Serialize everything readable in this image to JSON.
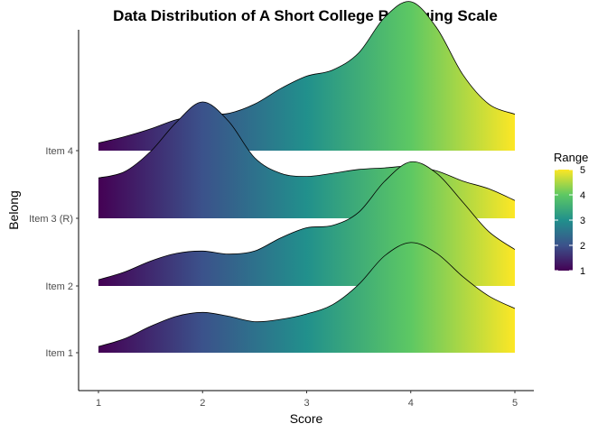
{
  "chart_data": {
    "type": "ridgeline",
    "title": "Data Distribution of A Short College Belonging Scale",
    "xlabel": "Score",
    "ylabel": "Belong",
    "xlim": [
      1,
      5
    ],
    "x_ticks": [
      "1",
      "2",
      "3",
      "4",
      "5"
    ],
    "fill_gradient": {
      "name": "Range",
      "range": [
        1,
        5
      ],
      "ticks": [
        "1",
        "2",
        "3",
        "4",
        "5"
      ],
      "colors": [
        "#440154",
        "#3b528b",
        "#21908c",
        "#5dc863",
        "#fde725"
      ]
    },
    "grid": false,
    "legend_position": "right",
    "x": [
      1.0,
      1.25,
      1.5,
      1.75,
      2.0,
      2.25,
      2.5,
      2.75,
      3.0,
      3.25,
      3.5,
      3.75,
      4.0,
      4.25,
      4.5,
      4.75,
      5.0
    ],
    "series": [
      {
        "name": "Item 1",
        "density": [
          0.08,
          0.18,
          0.34,
          0.47,
          0.52,
          0.47,
          0.4,
          0.43,
          0.5,
          0.62,
          0.88,
          1.25,
          1.42,
          1.28,
          0.98,
          0.73,
          0.57
        ]
      },
      {
        "name": "Item 2",
        "density": [
          0.08,
          0.18,
          0.32,
          0.42,
          0.45,
          0.41,
          0.45,
          0.62,
          0.75,
          0.78,
          0.95,
          1.35,
          1.6,
          1.45,
          1.08,
          0.7,
          0.47
        ]
      },
      {
        "name": "Item 3 (R)",
        "density": [
          0.52,
          0.6,
          0.86,
          1.24,
          1.5,
          1.25,
          0.78,
          0.58,
          0.54,
          0.58,
          0.63,
          0.65,
          0.67,
          0.61,
          0.48,
          0.38,
          0.23
        ]
      },
      {
        "name": "Item 4",
        "density": [
          0.1,
          0.18,
          0.28,
          0.4,
          0.46,
          0.48,
          0.6,
          0.8,
          0.96,
          1.04,
          1.26,
          1.72,
          1.92,
          1.58,
          0.98,
          0.6,
          0.47
        ]
      }
    ]
  }
}
